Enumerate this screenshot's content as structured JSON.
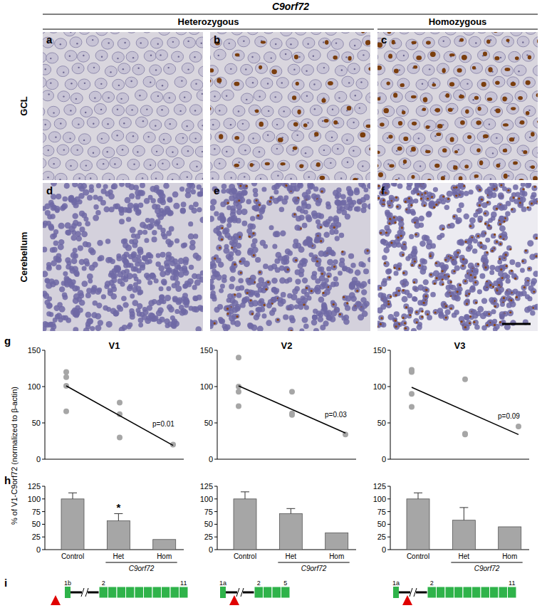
{
  "header": {
    "title": "C9orf72",
    "groups": [
      "Heterozygous",
      "Homozygous"
    ]
  },
  "image_panels": {
    "rows": [
      "GCL",
      "Cerebellum"
    ],
    "panels": [
      {
        "label": "a"
      },
      {
        "label": "b"
      },
      {
        "label": "c"
      },
      {
        "label": "d"
      },
      {
        "label": "e"
      },
      {
        "label": "f"
      }
    ]
  },
  "figure_labels": [
    "g",
    "h",
    "i"
  ],
  "y_axis_label": "% of V1-C9orf72 (normalized to β-actin)",
  "chart_data": [
    {
      "type": "scatter",
      "title": "V1",
      "xlim": [
        0.6,
        3.2
      ],
      "ylim": [
        0,
        150
      ],
      "yticks": [
        0,
        50,
        100,
        150
      ],
      "tick_labels": "y",
      "series": [
        {
          "type": "scatter",
          "x": [
            1,
            1,
            1,
            1,
            2,
            2,
            2,
            3
          ],
          "values": [
            120,
            113,
            101,
            66,
            78,
            62,
            30,
            20
          ],
          "color": "#a6a6a6",
          "marker": "circle"
        },
        {
          "type": "line",
          "x": [
            1,
            3
          ],
          "values": [
            101,
            19
          ],
          "color": "#000000"
        }
      ],
      "annotations": [
        "p=0.01"
      ]
    },
    {
      "type": "scatter",
      "title": "V2",
      "xlim": [
        0.6,
        3.2
      ],
      "ylim": [
        0,
        150
      ],
      "yticks": [
        0,
        50,
        100,
        150
      ],
      "tick_labels": "y",
      "series": [
        {
          "type": "scatter",
          "x": [
            1,
            1,
            1,
            1,
            2,
            2,
            2,
            3
          ],
          "values": [
            140,
            100,
            93,
            73,
            93,
            63,
            61,
            34
          ],
          "color": "#a6a6a6",
          "marker": "circle"
        },
        {
          "type": "line",
          "x": [
            1,
            3
          ],
          "values": [
            101,
            36
          ],
          "color": "#000000"
        }
      ],
      "annotations": [
        "p=0.03"
      ]
    },
    {
      "type": "scatter",
      "title": "V3",
      "xlim": [
        0.6,
        3.2
      ],
      "ylim": [
        0,
        150
      ],
      "yticks": [
        0,
        50,
        100,
        150
      ],
      "tick_labels": "y",
      "series": [
        {
          "type": "scatter",
          "x": [
            1,
            1,
            1,
            1,
            2,
            2,
            2,
            3
          ],
          "values": [
            123,
            120,
            90,
            72,
            110,
            35,
            34,
            45
          ],
          "color": "#a6a6a6",
          "marker": "circle"
        },
        {
          "type": "line",
          "x": [
            1,
            3
          ],
          "values": [
            99,
            34
          ],
          "color": "#000000"
        }
      ],
      "annotations": [
        "p=0.09"
      ]
    },
    {
      "type": "bar",
      "categories": [
        "Control",
        "Het",
        "Hom"
      ],
      "values": [
        100,
        57,
        20
      ],
      "errors": [
        12,
        14,
        null
      ],
      "color": "#a6a6a6",
      "ylim": [
        0,
        125
      ],
      "yticks": [
        0,
        25,
        50,
        75,
        100,
        125
      ],
      "x_group_label": "C9orf72",
      "annotations": [
        {
          "text": "*",
          "category": "Het"
        }
      ]
    },
    {
      "type": "bar",
      "categories": [
        "Control",
        "Het",
        "Hom"
      ],
      "values": [
        100,
        71,
        33
      ],
      "errors": [
        14,
        10,
        null
      ],
      "color": "#a6a6a6",
      "ylim": [
        0,
        125
      ],
      "yticks": [
        0,
        25,
        50,
        75,
        100,
        125
      ],
      "x_group_label": "C9orf72"
    },
    {
      "type": "bar",
      "categories": [
        "Control",
        "Het",
        "Hom"
      ],
      "values": [
        100,
        58,
        45
      ],
      "errors": [
        12,
        25,
        null
      ],
      "color": "#a6a6a6",
      "ylim": [
        0,
        125
      ],
      "yticks": [
        0,
        25,
        50,
        75,
        100,
        125
      ],
      "x_group_label": "C9orf72"
    }
  ],
  "gene_diagrams": [
    {
      "first": "1b",
      "second": "2",
      "last": "11",
      "repeat_position": "upstream"
    },
    {
      "first": "1a",
      "second": "2",
      "last": "5",
      "repeat_position": "intron"
    },
    {
      "first": "1a",
      "second": "2",
      "last": "11",
      "repeat_position": "intron"
    }
  ]
}
